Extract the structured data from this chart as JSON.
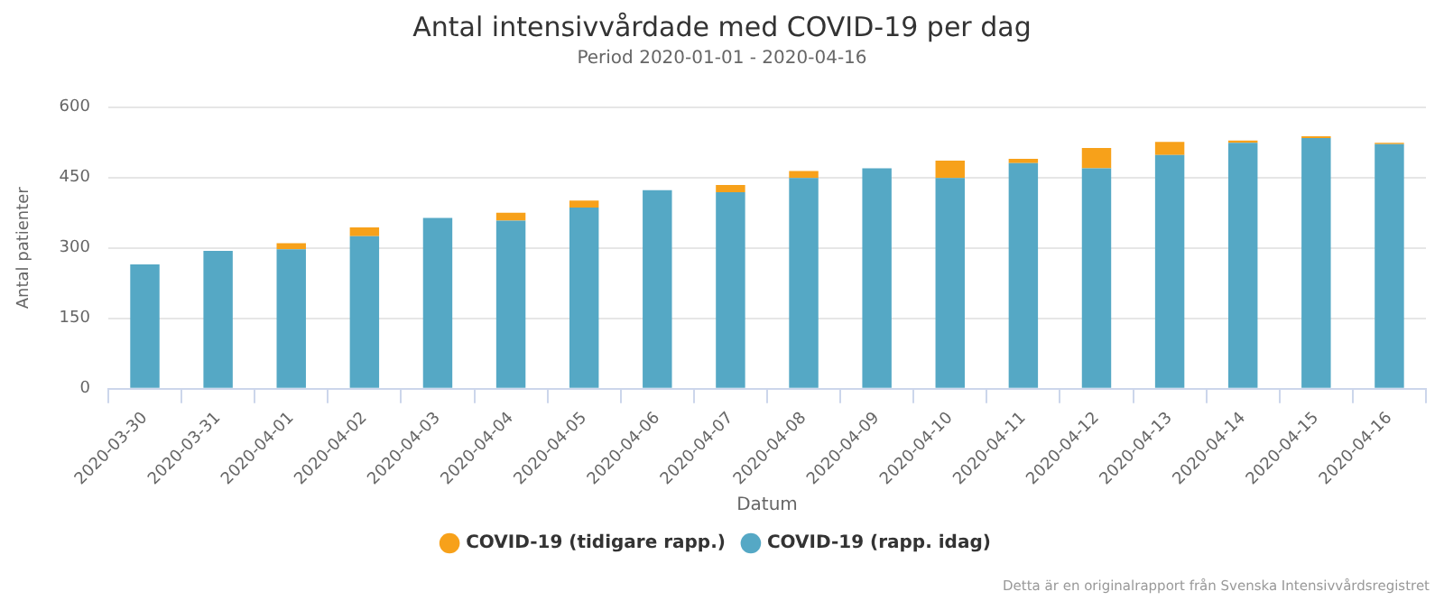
{
  "chart_data": {
    "type": "bar",
    "title": "Antal intensivvårdade med COVID-19 per dag",
    "subtitle": "Period 2020-01-01 - 2020-04-16",
    "xlabel": "Datum",
    "ylabel": "Antal patienter",
    "categories": [
      "2020-03-30",
      "2020-03-31",
      "2020-04-01",
      "2020-04-02",
      "2020-04-03",
      "2020-04-04",
      "2020-04-05",
      "2020-04-06",
      "2020-04-07",
      "2020-04-08",
      "2020-04-09",
      "2020-04-10",
      "2020-04-11",
      "2020-04-12",
      "2020-04-13",
      "2020-04-14",
      "2020-04-15",
      "2020-04-16"
    ],
    "series": [
      {
        "name": "COVID-19 (rapp. idag)",
        "color": "#55a8c5",
        "values": [
          265,
          294,
          297,
          325,
          364,
          358,
          386,
          423,
          419,
          449,
          470,
          449,
          481,
          470,
          498,
          524,
          534,
          521
        ]
      },
      {
        "name": "COVID-19 (tidigare rapp.)",
        "color": "#f7a11a",
        "values": [
          null,
          null,
          13,
          19,
          null,
          17,
          15,
          null,
          15,
          15,
          null,
          37,
          9,
          43,
          28,
          5,
          4,
          3
        ]
      }
    ],
    "stacked": true,
    "ylim": [
      0,
      600
    ],
    "yticks": [
      0,
      150,
      300,
      450,
      600
    ],
    "grid": "y",
    "legend": "bottom",
    "annotations": [
      "Detta är en originalrapport från Svenska Intensivvårdsregistret"
    ]
  }
}
